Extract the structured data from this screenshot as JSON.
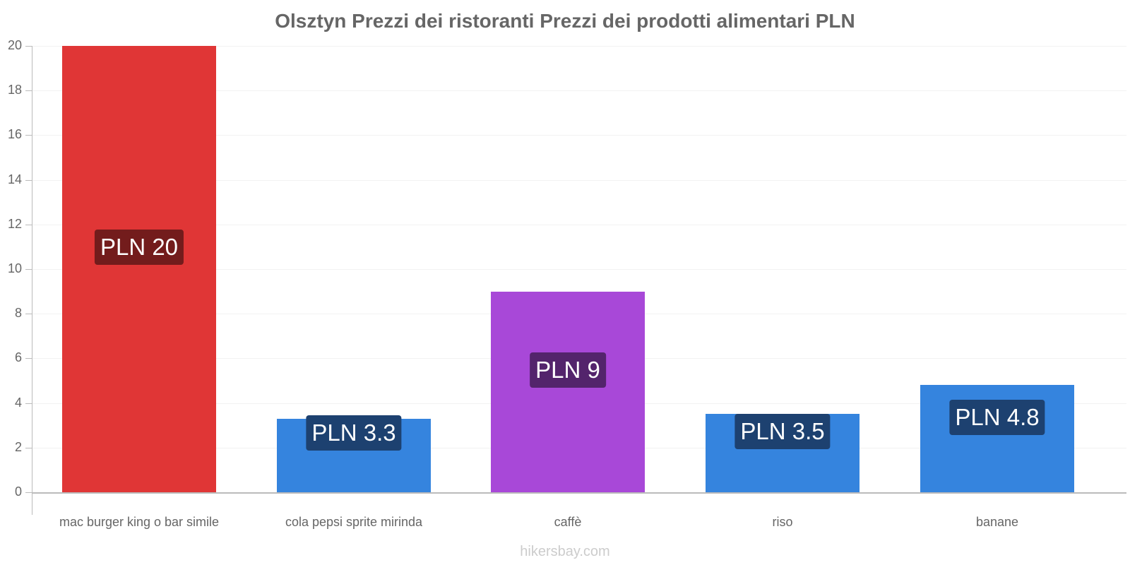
{
  "title": "Olsztyn Prezzi dei ristoranti Prezzi dei prodotti alimentari PLN",
  "watermark": "hikersbay.com",
  "y_ticks": [
    "0",
    "2",
    "4",
    "6",
    "8",
    "10",
    "12",
    "14",
    "16",
    "18",
    "20"
  ],
  "bars": [
    {
      "label": "mac burger king o bar simile",
      "value": 20,
      "badge": "PLN 20",
      "color": "#e03636",
      "badge_color": "#731c1c"
    },
    {
      "label": "cola pepsi sprite mirinda",
      "value": 3.3,
      "badge": "PLN 3.3",
      "color": "#3584de",
      "badge_color": "#1d4170"
    },
    {
      "label": "caffè",
      "value": 9,
      "badge": "PLN 9",
      "color": "#a848d8",
      "badge_color": "#53246c"
    },
    {
      "label": "riso",
      "value": 3.5,
      "badge": "PLN 3.5",
      "color": "#3584de",
      "badge_color": "#1d4170"
    },
    {
      "label": "banane",
      "value": 4.8,
      "badge": "PLN 4.8",
      "color": "#3584de",
      "badge_color": "#1d4170"
    }
  ],
  "chart_data": {
    "type": "bar",
    "title": "Olsztyn Prezzi dei ristoranti Prezzi dei prodotti alimentari PLN",
    "categories": [
      "mac burger king o bar simile",
      "cola pepsi sprite mirinda",
      "caffè",
      "riso",
      "banane"
    ],
    "values": [
      20,
      3.3,
      9,
      3.5,
      4.8
    ],
    "data_labels": [
      "PLN 20",
      "PLN 3.3",
      "PLN 9",
      "PLN 3.5",
      "PLN 4.8"
    ],
    "colors": [
      "#e03636",
      "#3584de",
      "#a848d8",
      "#3584de",
      "#3584de"
    ],
    "xlabel": "",
    "ylabel": "",
    "ylim": [
      0,
      20
    ],
    "yticks": [
      0,
      2,
      4,
      6,
      8,
      10,
      12,
      14,
      16,
      18,
      20
    ],
    "grid": true,
    "legend": "none",
    "unit": "PLN"
  }
}
